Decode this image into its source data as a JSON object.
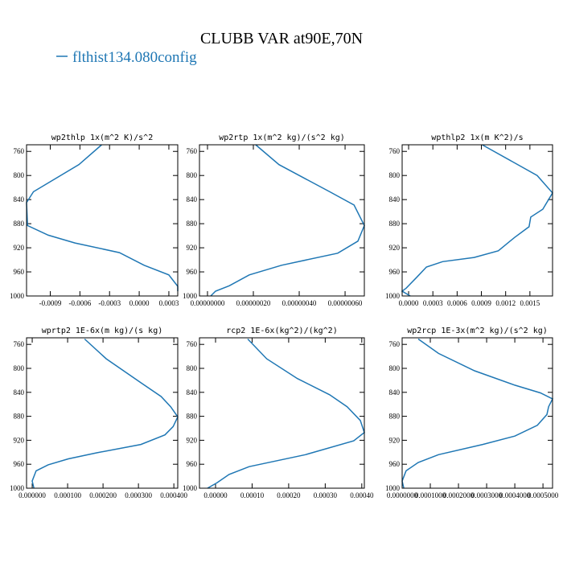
{
  "title": "CLUBB VAR at90E,70N",
  "legend": [
    {
      "name": "flthist134.080config",
      "color": "#1f77b4"
    }
  ],
  "chart_data": [
    {
      "type": "line",
      "title": "wp2thlp  1x(m^2 K)/s^2",
      "color": "#1f77b4",
      "values": [
        -0.00038,
        -0.00061,
        -0.00107,
        -0.00114,
        -0.00113,
        -0.00092,
        -0.00065,
        -0.0002,
        5e-05,
        0.0003,
        0.00039,
        0.00039
      ],
      "levels": [
        749,
        782,
        827,
        845,
        883,
        899,
        912,
        928,
        949,
        965,
        984,
        992
      ],
      "xlim": [
        -0.00114,
        0.00039
      ],
      "ylim": [
        1000,
        749
      ],
      "xticks": [
        -0.0009,
        -0.0006,
        -0.0003,
        {
          "value": 0,
          "label": "0.0000"
        },
        0.0003
      ],
      "yticks": [
        760,
        800,
        840,
        880,
        920,
        960,
        1000
      ]
    },
    {
      "type": "line",
      "title": "wp2rtp  1x(m^2 kg)/(s^2 kg)",
      "color": "#1f77b4",
      "values": [
        2.1e-07,
        3.12e-07,
        5.33e-07,
        6.39e-07,
        6.84e-07,
        6.56e-07,
        5.68e-07,
        3.23e-07,
        1.82e-07,
        9.5e-08,
        3.5e-08,
        1.4e-08
      ],
      "levels": [
        749,
        782,
        827,
        849,
        883,
        909,
        929,
        949,
        965,
        983,
        992,
        1000
      ],
      "xlim": [
        -3.5e-08,
        6.84e-07
      ],
      "ylim": [
        1000,
        749
      ],
      "xticks": [
        {
          "value": 0,
          "label": "0.00000000"
        },
        {
          "value": 2e-07,
          "label": "0.00000020"
        },
        {
          "value": 4e-07,
          "label": "0.00000040"
        },
        {
          "value": 6e-07,
          "label": "0.00000060"
        }
      ],
      "yticks": [
        760,
        800,
        840,
        880,
        920,
        960,
        1000
      ]
    },
    {
      "type": "line",
      "title": "wpthlp2  1x(m K^2)/s",
      "color": "#1f77b4",
      "values": [
        0.00091,
        0.00159,
        0.00178,
        0.00166,
        0.00151,
        0.00149,
        0.00131,
        0.00111,
        0.00081,
        0.00042,
        0.00022,
        0.0001,
        -3e-05,
        -8e-05,
        2e-05
      ],
      "levels": [
        749,
        800,
        829,
        856,
        869,
        885,
        903,
        925,
        936,
        943,
        952,
        969,
        987,
        992,
        1000
      ],
      "xlim": [
        -8e-05,
        0.00178
      ],
      "ylim": [
        1000,
        749
      ],
      "xticks": [
        {
          "value": 0,
          "label": "0.0000"
        },
        0.0003,
        0.0006,
        0.0009,
        0.0012,
        0.0015
      ],
      "yticks": [
        760,
        800,
        840,
        880,
        920,
        960,
        1000
      ]
    },
    {
      "type": "line",
      "title": "wprtp2  1E-6x(m kg)/(s kg)",
      "color": "#1f77b4",
      "values": [
        0.000148,
        0.000209,
        0.000307,
        0.000364,
        0.000391,
        0.000411,
        0.000398,
        0.000375,
        0.000307,
        0.000182,
        0.000102,
        4.5e-05,
        1.1e-05,
        0,
        5e-06
      ],
      "levels": [
        751,
        784,
        824,
        847,
        864,
        881,
        897,
        911,
        927,
        941,
        951,
        961,
        971,
        988,
        1000
      ],
      "xlim": [
        -1.6e-05,
        0.000411
      ],
      "ylim": [
        1000,
        749
      ],
      "xticks": [
        {
          "value": 0,
          "label": "0.000000"
        },
        {
          "value": 0.0001,
          "label": "0.000100"
        },
        {
          "value": 0.0002,
          "label": "0.000200"
        },
        {
          "value": 0.0003,
          "label": "0.000300"
        },
        {
          "value": 0.0004,
          "label": "0.000400"
        }
      ],
      "yticks": [
        760,
        800,
        840,
        880,
        920,
        960,
        1000
      ]
    },
    {
      "type": "line",
      "title": "rcp2  1E-6x(kg^2)/(kg^2)",
      "color": "#1f77b4",
      "values": [
        8.8e-05,
        0.00014,
        0.000224,
        0.000312,
        0.00036,
        0.000396,
        0.000407,
        0.000378,
        0.000246,
        9.2e-05,
        3.7e-05,
        4e-06,
        -2.2e-05
      ],
      "levels": [
        751,
        784,
        817,
        844,
        864,
        887,
        907,
        921,
        944,
        964,
        977,
        991,
        1000
      ],
      "xlim": [
        -4.4e-05,
        0.000407
      ],
      "ylim": [
        1000,
        749
      ],
      "xticks": [
        {
          "value": 0,
          "label": "0.00000"
        },
        {
          "value": 0.0001,
          "label": "0.00010"
        },
        {
          "value": 0.0002,
          "label": "0.00020"
        },
        {
          "value": 0.0003,
          "label": "0.00030"
        },
        {
          "value": 0.0004,
          "label": "0.00040"
        }
      ],
      "yticks": [
        760,
        800,
        840,
        880,
        920,
        960,
        1000
      ]
    },
    {
      "type": "line",
      "title": "wp2rcp  1E-3x(m^2 kg)/(s^2 kg)",
      "color": "#1f77b4",
      "values": [
        5.7e-05,
        0.000129,
        0.000257,
        0.0004,
        0.000491,
        0.000534,
        0.00052,
        0.000514,
        0.00048,
        0.0004,
        0.000286,
        0.000129,
        5.7e-05,
        1.4e-05,
        0,
        6e-06
      ],
      "levels": [
        751,
        775,
        804,
        828,
        841,
        851,
        864,
        877,
        895,
        913,
        927,
        944,
        957,
        971,
        988,
        1000
      ],
      "xlim": [
        0,
        0.000534
      ],
      "ylim": [
        1000,
        749
      ],
      "xticks": [
        {
          "value": 0,
          "label": "0.0000000"
        },
        {
          "value": 0.0001,
          "label": "0.0001000"
        },
        {
          "value": 0.0002,
          "label": "0.0002000"
        },
        {
          "value": 0.0003,
          "label": "0.0003000"
        },
        {
          "value": 0.0004,
          "label": "0.0004000"
        },
        {
          "value": 0.0005,
          "label": "0.0005000"
        }
      ],
      "yticks": [
        760,
        800,
        840,
        880,
        920,
        960,
        1000
      ]
    }
  ]
}
